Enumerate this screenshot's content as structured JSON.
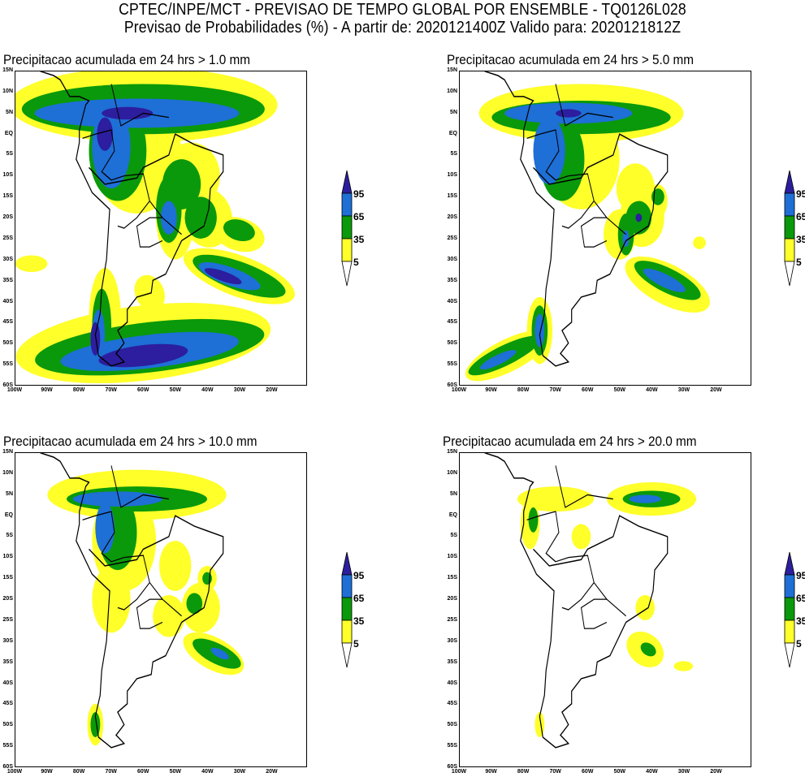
{
  "header": {
    "line1": "CPTEC/INPE/MCT - PREVISAO DE TEMPO GLOBAL POR ENSEMBLE - TQ0126L028",
    "line2": "Previsao de Probabilidades (%) -  A partir de: 2020121400Z  Valido para: 2020121812Z"
  },
  "panels": [
    {
      "title": "Precipitacao acumulada em 24 hrs > 1.0 mm",
      "threshold_mm": 1.0
    },
    {
      "title": "Precipitacao acumulada em 24 hrs > 5.0 mm",
      "threshold_mm": 5.0
    },
    {
      "title": "Precipitacao acumulada em 24 hrs > 10.0 mm",
      "threshold_mm": 10.0
    },
    {
      "title": "Precipitacao acumulada em 24 hrs > 20.0 mm",
      "threshold_mm": 20.0
    }
  ],
  "lat_labels": [
    "15N",
    "10N",
    "5N",
    "EQ",
    "5S",
    "10S",
    "15S",
    "20S",
    "25S",
    "30S",
    "35S",
    "40S",
    "45S",
    "50S",
    "55S",
    "60S"
  ],
  "lon_labels": [
    "100W",
    "90W",
    "80W",
    "70W",
    "60W",
    "50W",
    "40W",
    "30W",
    "20W"
  ],
  "colorbar": {
    "levels": [
      "95",
      "65",
      "35",
      "5"
    ],
    "colors": {
      "c95": "#2c1e9e",
      "c65": "#1e6fd6",
      "c35": "#0a990a",
      "c5": "#ffff2a"
    }
  }
}
